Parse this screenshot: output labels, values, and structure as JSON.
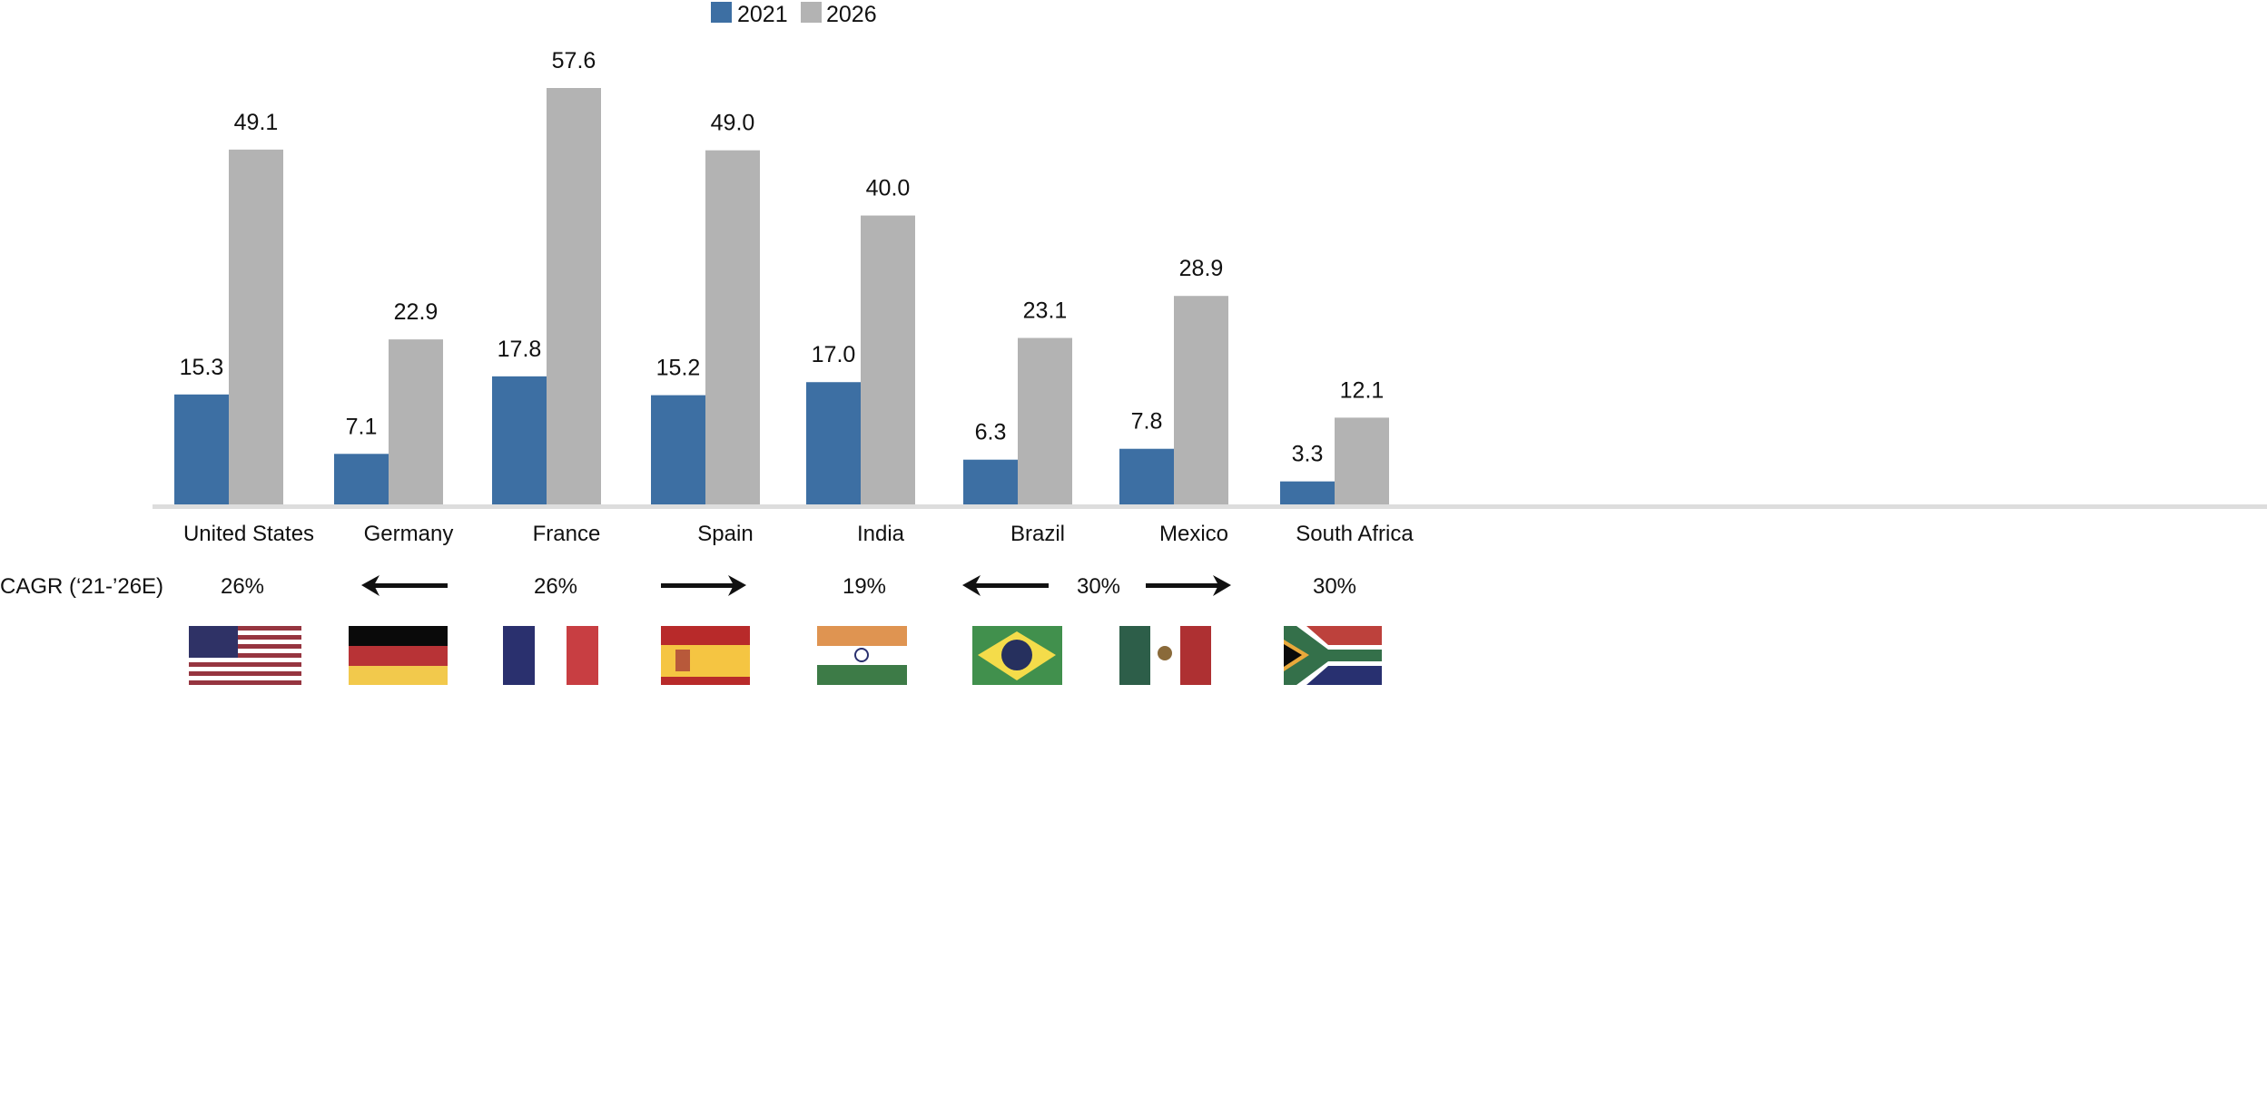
{
  "chart_data": {
    "type": "bar",
    "categories": [
      "United States",
      "Germany",
      "France",
      "Spain",
      "India",
      "Brazil",
      "Mexico",
      "South Africa"
    ],
    "series": [
      {
        "name": "2021",
        "color": "#3d6fa3",
        "values": [
          15.3,
          7.1,
          17.8,
          15.2,
          17.0,
          6.3,
          7.8,
          3.3
        ],
        "labels": [
          "15.3",
          "7.1",
          "17.8",
          "15.2",
          "17.0",
          "6.3",
          "7.8",
          "3.3"
        ]
      },
      {
        "name": "2026",
        "color": "#b3b3b3",
        "values": [
          49.1,
          22.9,
          57.6,
          49.0,
          40.0,
          23.1,
          28.9,
          12.1
        ],
        "labels": [
          "49.1",
          "22.9",
          "57.6",
          "49.0",
          "40.0",
          "23.1",
          "28.9",
          "12.1"
        ]
      }
    ],
    "ylim": [
      0,
      60
    ],
    "grid": false,
    "legend_placement": "top-center",
    "axis_color": "#dddddd"
  },
  "cagr": {
    "label": "CAGR (‘21-’26E)",
    "values": [
      "26%",
      "26%",
      "19%",
      "30%",
      "30%"
    ],
    "arrows": [
      "left",
      "right",
      "left",
      "right"
    ]
  },
  "flags": [
    "us-flag",
    "germany-flag",
    "france-flag",
    "spain-flag",
    "india-flag",
    "brazil-flag",
    "mexico-flag",
    "south-africa-flag"
  ]
}
